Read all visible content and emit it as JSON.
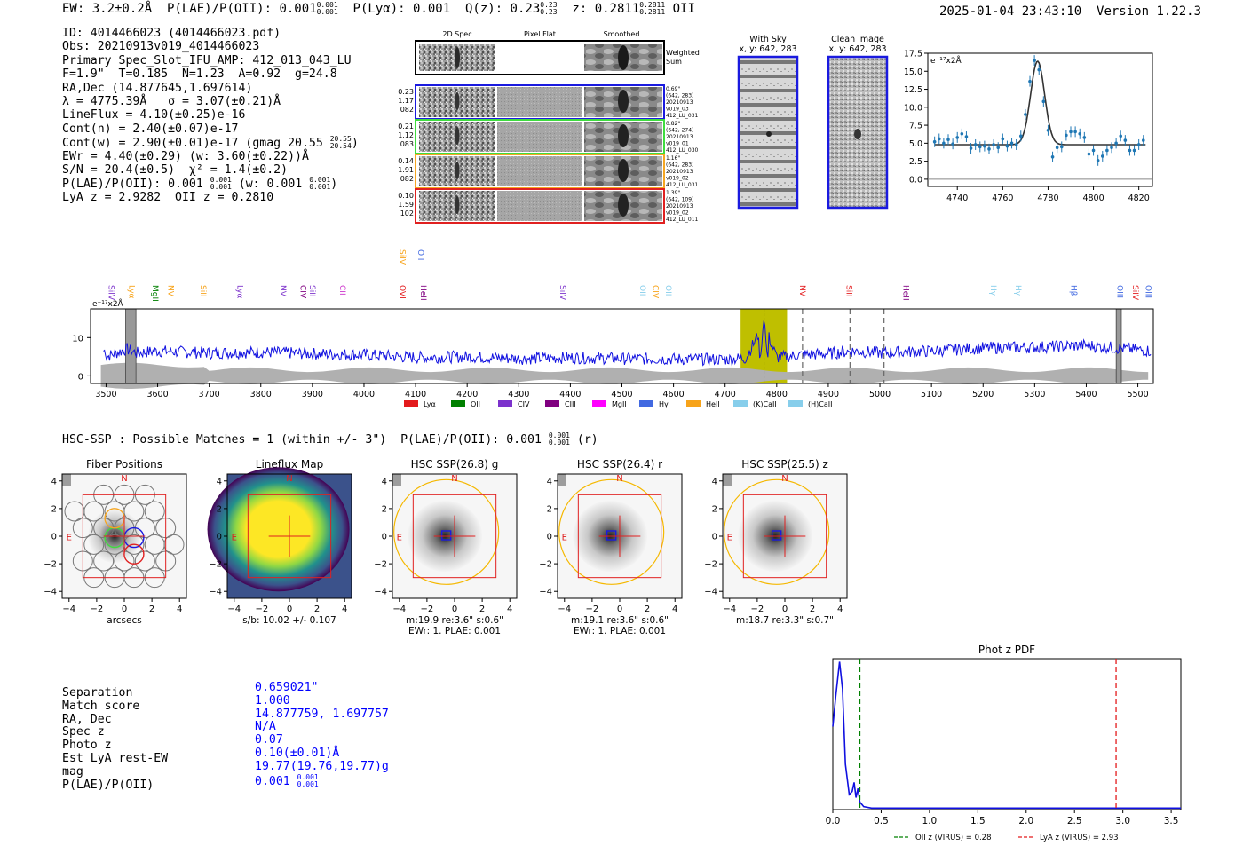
{
  "header": {
    "ew": "EW: 3.2±0.2Å",
    "plae_label": "P(LAE)/P(OII): 0.001",
    "plae_up": "0.001",
    "plae_lo": "0.001",
    "plya": "P(Lyα): 0.001",
    "qz_label": "Q(z): 0.23",
    "qz_up": "0.23",
    "qz_lo": "0.23",
    "z_label": "z: 0.2811",
    "z_up": "0.2811",
    "z_lo": "0.2811",
    "z_line": "OII",
    "datetime": "2025-01-04 23:43:10",
    "version": "Version 1.22.3"
  },
  "info": {
    "id": "ID: 4014466023 (4014466023.pdf)",
    "obs": "Obs: 20210913v019_4014466023",
    "primary": "Primary Spec_Slot_IFU_AMP: 412_013_043_LU",
    "params": "F=1.9\"  T=0.185  N=1.23  A=0.92  g=24.8",
    "radec": "RA,Dec (14.877645,1.697614)",
    "lambda": "λ = 4775.39Å   σ = 3.07(±0.21)Å",
    "lineflux": "LineFlux = 4.10(±0.25)e-16",
    "cont_n": "Cont(n) = 2.40(±0.07)e-17",
    "cont_w": "Cont(w) = 2.90(±0.01)e-17 (gmag 20.55",
    "gmag_up": "20.55",
    "gmag_lo": "20.54",
    "ewr": "EWr = 4.40(±0.29) (w: 3.60(±0.22))Å",
    "sn": "S/N = 20.4(±0.5)  χ² = 1.4(±0.2)",
    "plae": "P(LAE)/P(OII): 0.001",
    "plae_up": "0.001",
    "plae_lo": "0.001",
    "plae_w": " (w: 0.001",
    "plae_w_up": "0.001",
    "plae_w_lo": "0.001",
    "lya_z": "LyA z = 2.9282  OII z = 0.2810"
  },
  "cutouts": {
    "col_labels": [
      "2D Spec",
      "Pixel Flat",
      "Smoothed"
    ],
    "weighted_sum": [
      "Weighted",
      "Sum"
    ],
    "rows": [
      {
        "left": [
          "0.23",
          "1.17",
          "082"
        ],
        "right": [
          "0.69\"",
          "(642, 283)",
          "20210913",
          "v019_03",
          "412_LU_031"
        ],
        "color": "#1a1adf"
      },
      {
        "left": [
          "0.21",
          "1.12",
          "083"
        ],
        "right": [
          "0.82\"",
          "(642, 274)",
          "20210913",
          "v019_01",
          "412_LU_030"
        ],
        "color": "#3fdc3f"
      },
      {
        "left": [
          "0.14",
          "1.91",
          "082"
        ],
        "right": [
          "1.16\"",
          "(642, 283)",
          "20210913",
          "v019_02",
          "412_LU_031"
        ],
        "color": "#f5a623"
      },
      {
        "left": [
          "0.10",
          "1.59",
          "102"
        ],
        "right": [
          "1.39\"",
          "(642, 109)",
          "20210913",
          "v019_02",
          "412_LU_011"
        ],
        "color": "#e02020"
      }
    ]
  },
  "sky_panels": {
    "with_sky": [
      "With Sky",
      "x, y: 642, 283"
    ],
    "clean": [
      "Clean Image",
      "x, y: 642, 283"
    ]
  },
  "fit_chart": {
    "type": "line",
    "unit_label": "e⁻¹⁷x2Å",
    "xlim": [
      4727,
      4826
    ],
    "ylim": [
      -1,
      17.5
    ],
    "xticks": [
      4740,
      4760,
      4780,
      4800,
      4820
    ],
    "yticks": [
      0.0,
      2.5,
      5.0,
      7.5,
      10.0,
      12.5,
      15.0,
      17.5
    ],
    "ytick_labels": [
      "0.0",
      "2.5",
      "5.0",
      "7.5",
      "10.0",
      "12.5",
      "15.0",
      "17.5"
    ],
    "points": [
      [
        4730,
        5.2
      ],
      [
        4732,
        5.6
      ],
      [
        4734,
        5.0
      ],
      [
        4736,
        5.5
      ],
      [
        4738,
        4.9
      ],
      [
        4740,
        5.8
      ],
      [
        4742,
        6.3
      ],
      [
        4744,
        5.9
      ],
      [
        4746,
        4.3
      ],
      [
        4748,
        4.8
      ],
      [
        4750,
        4.5
      ],
      [
        4752,
        4.6
      ],
      [
        4754,
        4.2
      ],
      [
        4756,
        4.8
      ],
      [
        4758,
        4.4
      ],
      [
        4760,
        5.6
      ],
      [
        4762,
        4.6
      ],
      [
        4764,
        5.0
      ],
      [
        4766,
        4.8
      ],
      [
        4768,
        6.0
      ],
      [
        4770,
        9.0
      ],
      [
        4772,
        13.6
      ],
      [
        4774,
        16.5
      ],
      [
        4776,
        15.2
      ],
      [
        4778,
        10.8
      ],
      [
        4780,
        6.8
      ],
      [
        4782,
        3.1
      ],
      [
        4784,
        4.4
      ],
      [
        4786,
        4.5
      ],
      [
        4788,
        6.1
      ],
      [
        4790,
        6.6
      ],
      [
        4792,
        6.6
      ],
      [
        4794,
        6.3
      ],
      [
        4796,
        5.8
      ],
      [
        4798,
        3.5
      ],
      [
        4800,
        4.0
      ],
      [
        4802,
        2.6
      ],
      [
        4804,
        3.2
      ],
      [
        4806,
        4.0
      ],
      [
        4808,
        4.4
      ],
      [
        4810,
        5.0
      ],
      [
        4812,
        6.0
      ],
      [
        4814,
        5.4
      ],
      [
        4816,
        4.0
      ],
      [
        4818,
        4.0
      ],
      [
        4820,
        4.8
      ],
      [
        4822,
        5.4
      ]
    ],
    "fit": {
      "center": 4775.39,
      "sigma": 3.07,
      "continuum": 4.8,
      "amplitude": 11.6
    }
  },
  "spectrum_chart": {
    "type": "line",
    "unit_label": "e⁻¹⁷x2Å",
    "xlim": [
      3470,
      5530
    ],
    "ylim": [
      -2,
      17.5
    ],
    "xticks": [
      3500,
      3600,
      3700,
      3800,
      3900,
      4000,
      4100,
      4200,
      4300,
      4400,
      4500,
      4600,
      4700,
      4800,
      4900,
      5000,
      5100,
      5200,
      5300,
      5400,
      5500
    ],
    "yticks": [
      0,
      10
    ],
    "highlight": [
      4730,
      4820
    ],
    "masked": [
      [
        3538,
        3558
      ],
      [
        5458,
        5468
      ]
    ],
    "line_marker": 4775.4,
    "dashed_markers": [
      4850,
      4942,
      5008
    ],
    "flux_anchor_points": [
      [
        3500,
        5
      ],
      [
        3540,
        7
      ],
      [
        3560,
        6
      ],
      [
        3600,
        6.5
      ],
      [
        3700,
        6
      ],
      [
        3800,
        6.2
      ],
      [
        3900,
        5.8
      ],
      [
        4000,
        5.5
      ],
      [
        4100,
        4.8
      ],
      [
        4200,
        5
      ],
      [
        4300,
        4.5
      ],
      [
        4400,
        4.8
      ],
      [
        4500,
        4.5
      ],
      [
        4600,
        4.4
      ],
      [
        4700,
        4.3
      ],
      [
        4740,
        4.6
      ],
      [
        4775,
        13.5
      ],
      [
        4800,
        4.8
      ],
      [
        4850,
        5.5
      ],
      [
        4900,
        5.8
      ],
      [
        4950,
        6.5
      ],
      [
        5000,
        6
      ],
      [
        5100,
        6.5
      ],
      [
        5200,
        7.3
      ],
      [
        5300,
        7.5
      ],
      [
        5400,
        8
      ],
      [
        5500,
        6.8
      ],
      [
        5530,
        6.5
      ]
    ],
    "line_labels": [
      {
        "t": "SiIV",
        "w": 3500,
        "c": "#7c32cc",
        "row": 0
      },
      {
        "t": "Lyα",
        "w": 3540,
        "c": "#f7a31a",
        "row": 0
      },
      {
        "t": "MgII",
        "w": 3585,
        "c": "#008000",
        "row": 0
      },
      {
        "t": "NV",
        "w": 3615,
        "c": "#f7a31a",
        "row": 0
      },
      {
        "t": "SiII",
        "w": 3678,
        "c": "#f7a31a",
        "row": 0
      },
      {
        "t": "Lyα",
        "w": 3750,
        "c": "#7c32cc",
        "row": 0
      },
      {
        "t": "NV",
        "w": 3833,
        "c": "#7c32cc",
        "row": 0
      },
      {
        "t": "CIV",
        "w": 3872,
        "c": "#800080",
        "row": 0
      },
      {
        "t": "SiII",
        "w": 3890,
        "c": "#7c32cc",
        "row": 0
      },
      {
        "t": "CII",
        "w": 3948,
        "c": "#cc33cc",
        "row": 0
      },
      {
        "t": "OVI",
        "w": 4065,
        "c": "#e31a1c",
        "row": 0
      },
      {
        "t": "HeII",
        "w": 4105,
        "c": "#800080",
        "row": 0
      },
      {
        "t": "SiIV",
        "w": 4065,
        "c": "#f7a31a",
        "row": 1
      },
      {
        "t": "OII",
        "w": 4100,
        "c": "#4169e1",
        "row": 1
      },
      {
        "t": "SiIV",
        "w": 4375,
        "c": "#7c32cc",
        "row": 0
      },
      {
        "t": "OII",
        "w": 4530,
        "c": "#87ceeb",
        "row": 0
      },
      {
        "t": "CIV",
        "w": 4555,
        "c": "#f7a31a",
        "row": 0
      },
      {
        "t": "OII",
        "w": 4580,
        "c": "#87ceeb",
        "row": 0
      },
      {
        "t": "NV",
        "w": 4840,
        "c": "#e31a1c",
        "row": 0
      },
      {
        "t": "SiII",
        "w": 4930,
        "c": "#e31a1c",
        "row": 0
      },
      {
        "t": "HeII",
        "w": 5040,
        "c": "#800080",
        "row": 0
      },
      {
        "t": "Hγ",
        "w": 5210,
        "c": "#87ceeb",
        "row": 0
      },
      {
        "t": "Hγ",
        "w": 5258,
        "c": "#87ceeb",
        "row": 0
      },
      {
        "t": "Hβ",
        "w": 5366,
        "c": "#4169e1",
        "row": 0
      },
      {
        "t": "OIII",
        "w": 5455,
        "c": "#4169e1",
        "row": 0
      },
      {
        "t": "SiIV",
        "w": 5485,
        "c": "#e31a1c",
        "row": 0
      },
      {
        "t": "OIII",
        "w": 5510,
        "c": "#4169e1",
        "row": 0
      }
    ],
    "legend": [
      {
        "name": "Lyα",
        "color": "#e31a1c"
      },
      {
        "name": "OII",
        "color": "#008000"
      },
      {
        "name": "CIV",
        "color": "#7c32cc"
      },
      {
        "name": "CIII",
        "color": "#800080"
      },
      {
        "name": "MgII",
        "color": "#ff00ff"
      },
      {
        "name": "Hγ",
        "color": "#4169e1"
      },
      {
        "name": "HeII",
        "color": "#f7a31a"
      },
      {
        "name": "(K)CaII",
        "color": "#87ceeb"
      },
      {
        "name": "(H)CaII",
        "color": "#87ceeb"
      }
    ]
  },
  "hsc": {
    "title": "HSC-SSP : Possible Matches = 1 (within +/- 3\")  P(LAE)/P(OII): 0.001",
    "plae_up": "0.001",
    "plae_lo": "0.001",
    "band": "(r)",
    "panels": [
      {
        "title": "Fiber Positions",
        "xlabel": "arcsecs",
        "sub": ""
      },
      {
        "title": "Lineflux Map",
        "xlabel": "s/b: 10.02 +/- 0.107",
        "sub": ""
      },
      {
        "title": "HSC SSP(26.8) g",
        "xlabel": "m:19.9  re:3.6\"  s:0.6\"",
        "sub": "EWr: 1. PLAE: 0.001"
      },
      {
        "title": "HSC SSP(26.4) r",
        "xlabel": "m:19.1  re:3.6\"  s:0.6\"",
        "sub": "EWr: 1. PLAE: 0.001"
      },
      {
        "title": "HSC SSP(25.5) z",
        "xlabel": "m:18.7  re:3.3\"  s:0.7\"",
        "sub": ""
      }
    ],
    "ticks": [
      -4,
      -2,
      0,
      2,
      4
    ],
    "tick_labels": [
      "−4",
      "−2",
      "0",
      "2",
      "4"
    ],
    "compass_n": "N",
    "compass_e": "E"
  },
  "match_table": {
    "labels": [
      "Separation",
      "Match score",
      "RA, Dec",
      "Spec z",
      "Photo z",
      "Est LyA rest-EW",
      "mag",
      "P(LAE)/P(OII)"
    ],
    "values": [
      "0.659021\"",
      "1.000",
      "14.877759, 1.697757",
      "N/A",
      "0.07",
      "0.10(±0.01)Å",
      "19.77(19.76,19.77)g",
      "0.001"
    ],
    "plae_up": "0.001",
    "plae_lo": "0.001"
  },
  "photz_chart": {
    "type": "line",
    "title": "Phot z PDF",
    "xlim": [
      0,
      3.6
    ],
    "ylim": [
      0,
      1
    ],
    "xticks": [
      0.0,
      0.5,
      1.0,
      1.5,
      2.0,
      2.5,
      3.0,
      3.5
    ],
    "xtick_labels": [
      "0.0",
      "0.5",
      "1.0",
      "1.5",
      "2.0",
      "2.5",
      "3.0",
      "3.5"
    ],
    "curve": [
      [
        0,
        0.55
      ],
      [
        0.03,
        0.75
      ],
      [
        0.07,
        0.98
      ],
      [
        0.1,
        0.8
      ],
      [
        0.13,
        0.3
      ],
      [
        0.17,
        0.1
      ],
      [
        0.2,
        0.12
      ],
      [
        0.22,
        0.18
      ],
      [
        0.24,
        0.08
      ],
      [
        0.26,
        0.14
      ],
      [
        0.28,
        0.05
      ],
      [
        0.32,
        0.02
      ],
      [
        0.4,
        0.01
      ],
      [
        3.6,
        0.01
      ]
    ],
    "oii_z": 0.28,
    "lya_z": 2.93,
    "legend": [
      {
        "name": "OII z (VIRUS) = 0.28",
        "color": "#008000"
      },
      {
        "name": "LyA z (VIRUS) = 2.93",
        "color": "#e31a1c"
      }
    ]
  }
}
